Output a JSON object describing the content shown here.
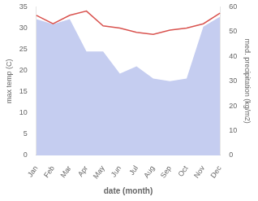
{
  "chart_data": {
    "type": "line",
    "xlabel": "date (month)",
    "ylabel": "max temp (C)",
    "y2label": "med. precipitation (kg/m2)",
    "categories": [
      "Jan",
      "Feb",
      "Mar",
      "Apr",
      "May",
      "Jun",
      "Jul",
      "Aug",
      "Sep",
      "Oct",
      "Nov",
      "Dec"
    ],
    "series": [
      {
        "type": "area",
        "axis": "y2",
        "color": "#c5cdf0",
        "values": [
          55,
          53,
          55,
          42,
          42,
          33,
          36,
          31,
          30,
          31,
          52,
          56
        ]
      },
      {
        "type": "line",
        "color": "#d9534f",
        "values": [
          33,
          31,
          33,
          34,
          30.5,
          30,
          29,
          28.5,
          29.5,
          30,
          31,
          33.5
        ]
      }
    ],
    "ylim": [
      0,
      35
    ],
    "yticks": [
      0,
      5,
      10,
      15,
      20,
      25,
      30,
      35
    ],
    "y2lim": [
      0,
      60
    ],
    "y2ticks": [
      0,
      10,
      20,
      30,
      40,
      50,
      60
    ],
    "grid": false
  }
}
